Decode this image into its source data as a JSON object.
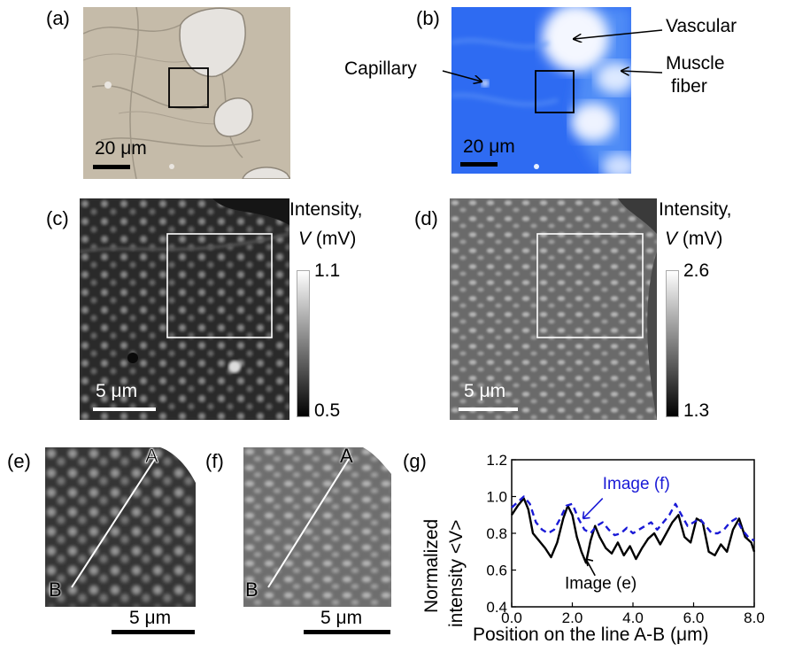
{
  "panels": {
    "a": {
      "label": "(a)",
      "scale": "20 μm"
    },
    "b": {
      "label": "(b)",
      "scale": "20 μm",
      "annotations": {
        "vascular": "Vascular",
        "capillary": "Capillary",
        "muscle_line1": "Muscle",
        "muscle_line2": "fiber"
      }
    },
    "c": {
      "label": "(c)",
      "scale": "5 μm",
      "colorbar": {
        "title_line1": "Intensity,",
        "title_var": "V",
        "title_unit": " (mV)",
        "max": "1.1",
        "min": "0.5"
      }
    },
    "d": {
      "label": "(d)",
      "scale": "5 μm",
      "colorbar": {
        "title_line1": "Intensity,",
        "title_var": "V",
        "title_unit": " (mV)",
        "max": "2.6",
        "min": "1.3"
      }
    },
    "e": {
      "label": "(e)",
      "scale": "5 μm",
      "point_a": "A",
      "point_b": "B"
    },
    "f": {
      "label": "(f)",
      "scale": "5 μm",
      "point_a": "A",
      "point_b": "B"
    },
    "g": {
      "label": "(g)"
    }
  },
  "chart_data": {
    "type": "line",
    "xlabel": "Position on the line A-B (μm)",
    "ylabel_line1": "Normalized",
    "ylabel_line2": "intensity <V>",
    "xlim": [
      0,
      8
    ],
    "ylim": [
      0.4,
      1.2
    ],
    "xticks": [
      "0.0",
      "2.0",
      "4.0",
      "6.0",
      "8.0"
    ],
    "yticks": [
      "0.4",
      "0.6",
      "0.8",
      "1.0",
      "1.2"
    ],
    "series": [
      {
        "name": "Image (e)",
        "color": "#000000",
        "style": "solid",
        "x": [
          0,
          0.2,
          0.4,
          0.55,
          0.7,
          0.9,
          1.1,
          1.3,
          1.5,
          1.7,
          1.85,
          2.0,
          2.15,
          2.3,
          2.45,
          2.6,
          2.75,
          2.9,
          3.1,
          3.3,
          3.5,
          3.7,
          3.9,
          4.1,
          4.3,
          4.5,
          4.7,
          4.9,
          5.1,
          5.3,
          5.5,
          5.7,
          5.9,
          6.1,
          6.3,
          6.5,
          6.7,
          6.9,
          7.1,
          7.3,
          7.5,
          7.7,
          7.9,
          8.0
        ],
        "y": [
          0.9,
          0.95,
          0.99,
          0.93,
          0.8,
          0.76,
          0.72,
          0.67,
          0.75,
          0.88,
          0.95,
          0.9,
          0.78,
          0.7,
          0.64,
          0.76,
          0.84,
          0.78,
          0.72,
          0.69,
          0.75,
          0.68,
          0.73,
          0.66,
          0.72,
          0.77,
          0.8,
          0.74,
          0.8,
          0.86,
          0.9,
          0.78,
          0.75,
          0.88,
          0.86,
          0.7,
          0.68,
          0.74,
          0.7,
          0.82,
          0.88,
          0.78,
          0.75,
          0.7
        ]
      },
      {
        "name": "Image (f)",
        "color": "#1a1ad6",
        "style": "dashed",
        "x": [
          0,
          0.2,
          0.4,
          0.6,
          0.8,
          1.0,
          1.2,
          1.4,
          1.6,
          1.8,
          2.0,
          2.2,
          2.4,
          2.6,
          2.8,
          3.0,
          3.2,
          3.4,
          3.6,
          3.8,
          4.0,
          4.2,
          4.4,
          4.6,
          4.8,
          5.0,
          5.2,
          5.4,
          5.6,
          5.8,
          6.0,
          6.2,
          6.4,
          6.6,
          6.8,
          7.0,
          7.2,
          7.4,
          7.6,
          7.8,
          8.0
        ],
        "y": [
          0.94,
          0.97,
          1.0,
          0.96,
          0.86,
          0.82,
          0.8,
          0.82,
          0.88,
          0.95,
          0.96,
          0.88,
          0.82,
          0.8,
          0.84,
          0.86,
          0.82,
          0.79,
          0.8,
          0.83,
          0.8,
          0.82,
          0.84,
          0.86,
          0.82,
          0.86,
          0.9,
          0.96,
          0.9,
          0.84,
          0.86,
          0.88,
          0.84,
          0.8,
          0.8,
          0.82,
          0.86,
          0.88,
          0.82,
          0.78,
          0.76
        ]
      }
    ],
    "annotations": [
      {
        "text": "Image (f)",
        "color": "#1a1ad6"
      },
      {
        "text": "Image (e)",
        "color": "#000000"
      }
    ]
  }
}
